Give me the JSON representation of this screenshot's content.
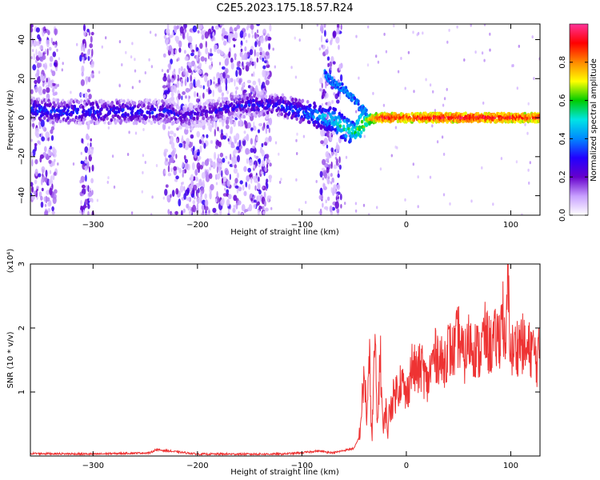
{
  "title": "C2E5.2023.175.18.57.R24",
  "chart_data": [
    {
      "type": "heatmap",
      "xlabel": "Height of straight line (km)",
      "ylabel": "Frequency (Hz)",
      "xlim": [
        -360,
        128
      ],
      "ylim": [
        -50,
        48
      ],
      "x_ticks": [
        -300,
        -200,
        -100,
        0,
        100
      ],
      "y_ticks": [
        40,
        20,
        0,
        -20,
        -40
      ],
      "colorbar": {
        "label": "Normalized spectral amplitude",
        "range": [
          0,
          1
        ],
        "ticks": [
          "0.0",
          "0.2",
          "0.4",
          "0.6",
          "0.8"
        ],
        "colors": [
          "#ffffff",
          "#c8a0ff",
          "#6600cc",
          "#2200ff",
          "#0088ff",
          "#00e5e5",
          "#00cc00",
          "#ffff00",
          "#ff8800",
          "#ff0000",
          "#ff3399"
        ]
      },
      "ridge": {
        "x": [
          -355,
          -330,
          -300,
          -260,
          -225,
          -215,
          -150,
          -120,
          -100,
          -85,
          -70,
          -60,
          -50,
          -40,
          -30,
          -20,
          0,
          40,
          80,
          128
        ],
        "freq": [
          4,
          3,
          3,
          3,
          3,
          0,
          7,
          6,
          3,
          1,
          -1,
          -5,
          -8,
          -2,
          0,
          0,
          0,
          0,
          0,
          0
        ],
        "amplitude": [
          0.35,
          0.32,
          0.33,
          0.32,
          0.3,
          0.25,
          0.3,
          0.32,
          0.38,
          0.45,
          0.5,
          0.55,
          0.55,
          0.7,
          0.85,
          0.95,
          0.9,
          0.95,
          0.95,
          0.9
        ]
      },
      "upper_branch": {
        "x": [
          -78,
          -70,
          -60,
          -52,
          -45,
          -38
        ],
        "freq": [
          22,
          18,
          15,
          10,
          6,
          2
        ]
      },
      "noise_bands": [
        [
          -360,
          -335
        ],
        [
          -312,
          -300
        ],
        [
          -232,
          -130
        ],
        [
          -82,
          -62
        ]
      ]
    },
    {
      "type": "line",
      "xlabel": "Height of straight line (km)",
      "ylabel": "SNR (10 * v/v)",
      "multiplier": "(x10⁴)",
      "xlim": [
        -360,
        128
      ],
      "ylim": [
        0,
        3
      ],
      "x_ticks": [
        -300,
        -200,
        -100,
        0,
        100
      ],
      "y_ticks": [
        1,
        2,
        3
      ],
      "color": "#ee3333",
      "x": [
        -360,
        -300,
        -245,
        -240,
        -200,
        -120,
        -100,
        -85,
        -70,
        -50,
        -45,
        -40,
        -38,
        -35,
        -33,
        -30,
        -28,
        -25,
        -22,
        -20,
        -18,
        -15,
        -10,
        -5,
        0,
        5,
        10,
        15,
        20,
        25,
        30,
        35,
        40,
        45,
        50,
        55,
        60,
        65,
        70,
        75,
        80,
        85,
        90,
        92,
        95,
        97,
        100,
        105,
        110,
        115,
        120,
        125,
        128
      ],
      "y": [
        0.04,
        0.03,
        0.05,
        0.1,
        0.03,
        0.03,
        0.05,
        0.08,
        0.05,
        0.12,
        0.3,
        1.3,
        0.6,
        1.5,
        0.2,
        1.9,
        0.4,
        1.6,
        0.3,
        0.8,
        0.4,
        0.8,
        1.0,
        1.2,
        0.9,
        1.4,
        1.3,
        1.4,
        1.1,
        1.5,
        1.6,
        1.4,
        1.7,
        1.6,
        1.9,
        1.5,
        1.8,
        1.7,
        1.6,
        1.9,
        1.7,
        1.8,
        1.9,
        2.4,
        1.4,
        2.9,
        1.6,
        1.7,
        1.8,
        1.6,
        1.7,
        1.5,
        1.6
      ]
    }
  ]
}
